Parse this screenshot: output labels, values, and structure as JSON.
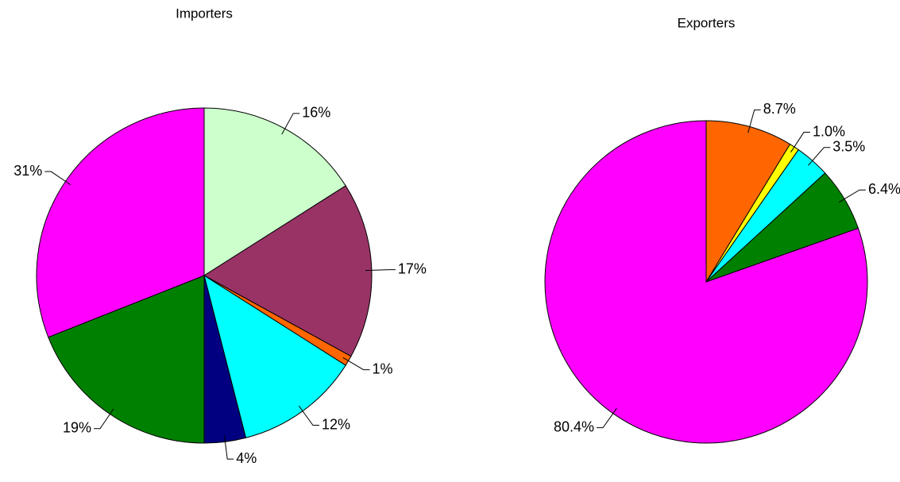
{
  "chart_data": [
    {
      "type": "pie",
      "title": "Importers",
      "values": [
        16,
        17,
        1,
        12,
        4,
        19,
        31
      ],
      "value_labels": [
        "16%",
        "17%",
        "1%",
        "12%",
        "4%",
        "19%",
        "31%"
      ],
      "colors": [
        "#ccffcc",
        "#993366",
        "#ff6600",
        "#00ffff",
        "#000080",
        "#008000",
        "#ff00ff"
      ]
    },
    {
      "type": "pie",
      "title": "Exporters",
      "values": [
        8.7,
        1.0,
        3.5,
        6.4,
        80.4
      ],
      "value_labels": [
        "8.7%",
        "1.0%",
        "3.5%",
        "6.4%",
        "80.4%"
      ],
      "colors": [
        "#ff6600",
        "#ffff00",
        "#00ffff",
        "#008000",
        "#ff00ff"
      ]
    }
  ]
}
